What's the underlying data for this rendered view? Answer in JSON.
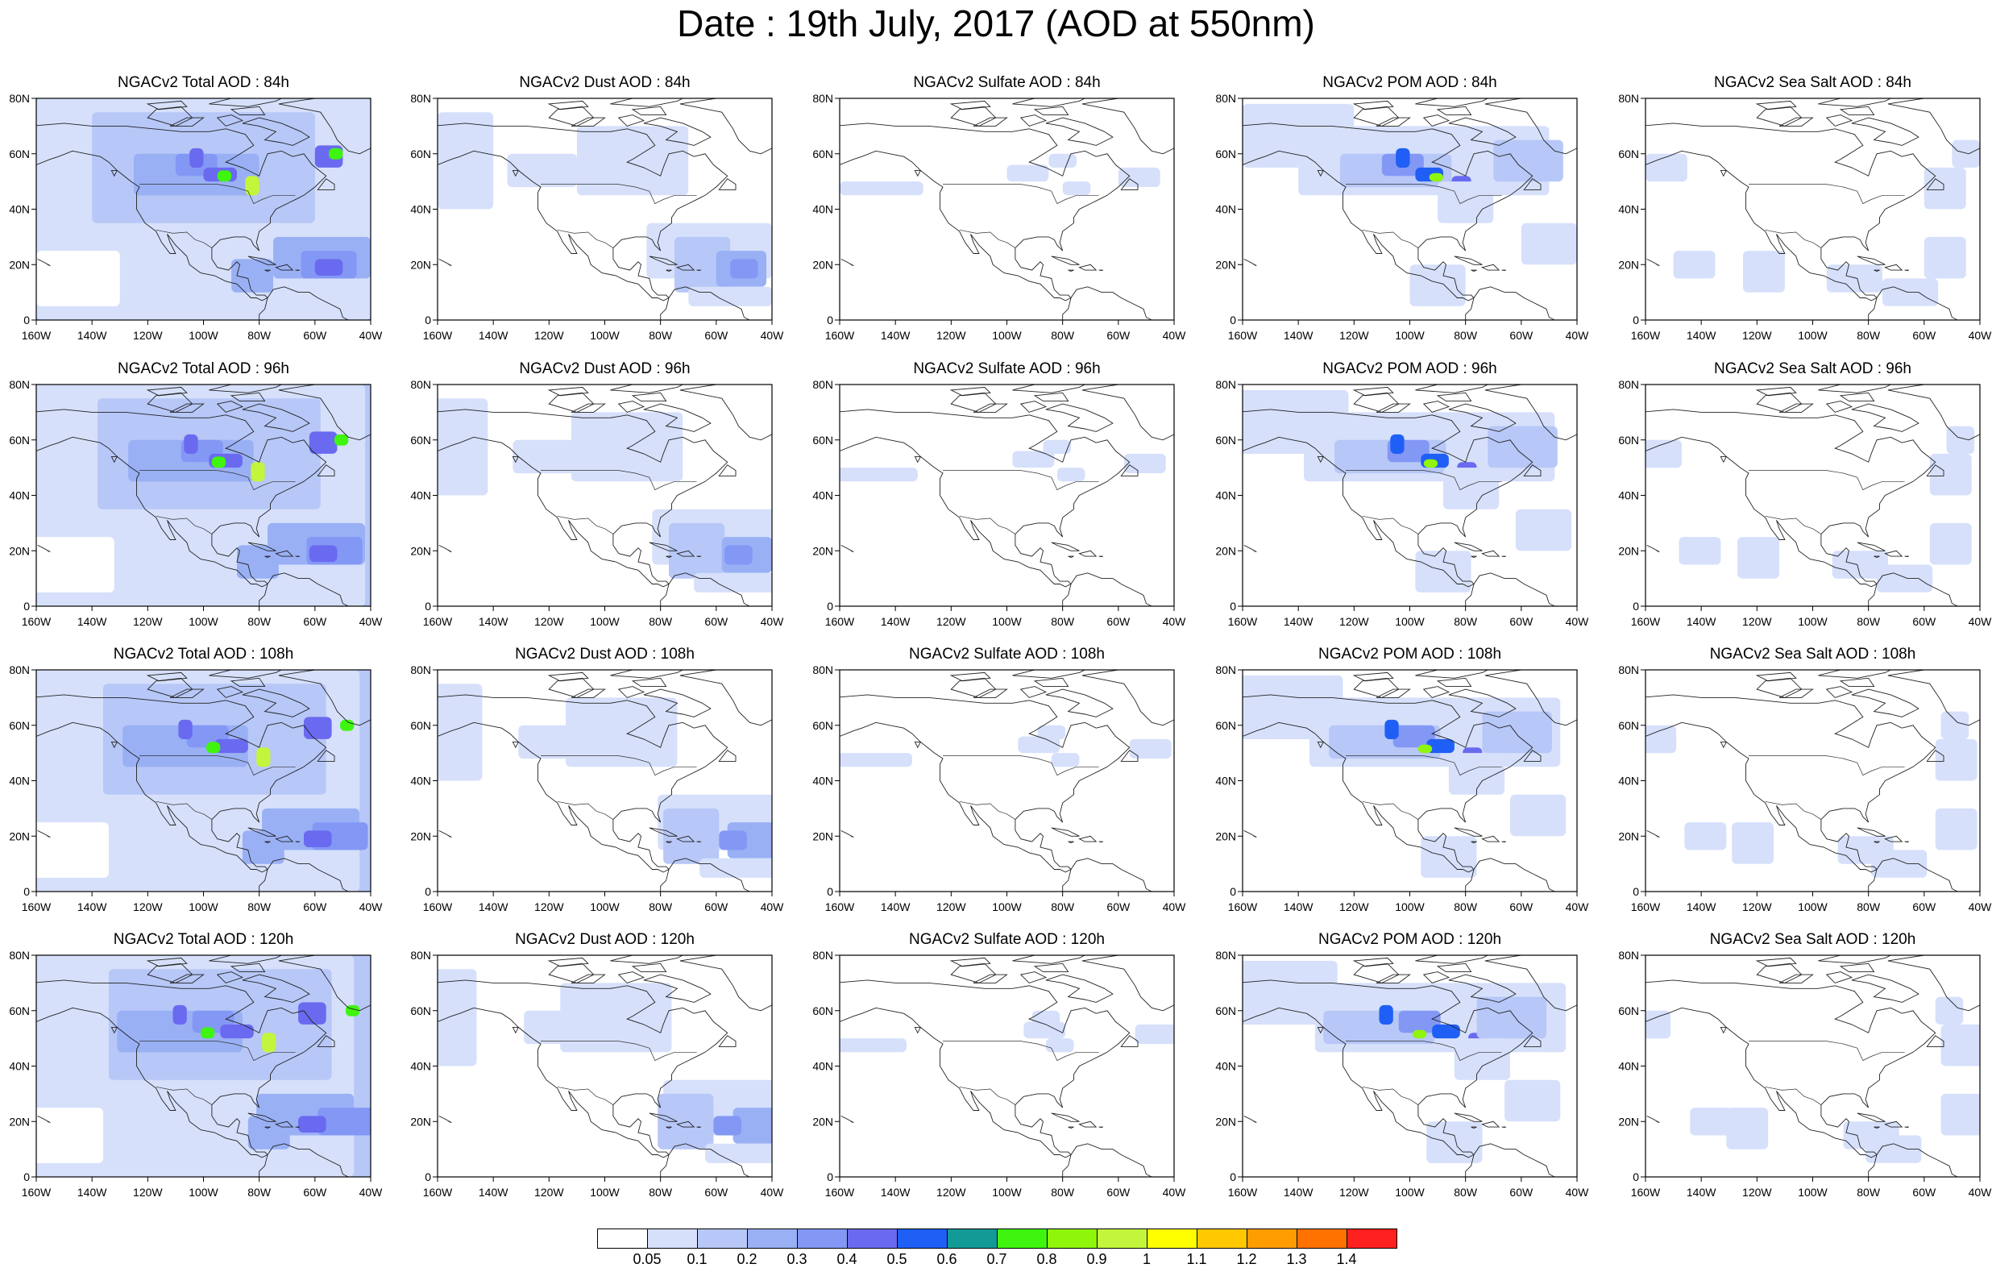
{
  "title": "Date : 19th July, 2017 (AOD at 550nm)",
  "lon_ticks": [
    "160W",
    "140W",
    "120W",
    "100W",
    "80W",
    "60W",
    "40W"
  ],
  "lat_ticks": [
    "0",
    "20N",
    "40N",
    "60N",
    "80N"
  ],
  "map_extent": {
    "lon_min": -160,
    "lon_max": -40,
    "lat_min": 0,
    "lat_max": 80
  },
  "panel_titles": [
    [
      "NGACv2 Total AOD : 84h",
      "NGACv2 Dust AOD : 84h",
      "NGACv2 Sulfate AOD : 84h",
      "NGACv2 POM AOD : 84h",
      "NGACv2 Sea Salt AOD : 84h"
    ],
    [
      "NGACv2 Total AOD : 96h",
      "NGACv2 Dust AOD : 96h",
      "NGACv2 Sulfate AOD : 96h",
      "NGACv2 POM AOD : 96h",
      "NGACv2 Sea Salt AOD : 96h"
    ],
    [
      "NGACv2 Total AOD : 108h",
      "NGACv2 Dust AOD : 108h",
      "NGACv2 Sulfate AOD : 108h",
      "NGACv2 POM AOD : 108h",
      "NGACv2 Sea Salt AOD : 108h"
    ],
    [
      "NGACv2 Total AOD : 120h",
      "NGACv2 Dust AOD : 120h",
      "NGACv2 Sulfate AOD : 120h",
      "NGACv2 POM AOD : 120h",
      "NGACv2 Sea Salt  AOD : 120h"
    ]
  ],
  "colorbar": {
    "labels": [
      "0.05",
      "0.1",
      "0.2",
      "0.3",
      "0.4",
      "0.5",
      "0.6",
      "0.7",
      "0.8",
      "0.9",
      "1",
      "1.1",
      "1.2",
      "1.3",
      "1.4"
    ],
    "colors": [
      "#ffffff",
      "#d6e0fb",
      "#b7c7f7",
      "#99b0f5",
      "#8398f5",
      "#6a6af0",
      "#1f5ff5",
      "#129b96",
      "#3ff50f",
      "#8ff50a",
      "#c3f53c",
      "#ffff00",
      "#ffc800",
      "#ff9d00",
      "#ff7200",
      "#ff2020"
    ]
  },
  "aerosol_types": [
    "Total",
    "Dust",
    "Sulfate",
    "POM",
    "Sea Salt"
  ]
}
